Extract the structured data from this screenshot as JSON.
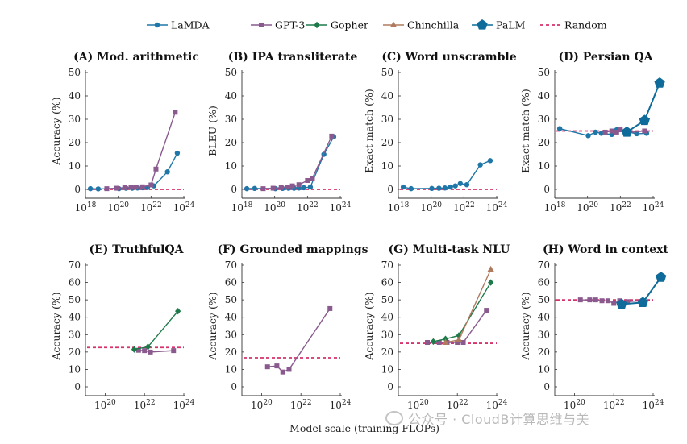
{
  "colors": {
    "LaMDA": "#1f77a8",
    "GPT-3": "#8a5a8f",
    "Gopher": "#1f7a4a",
    "Chinchilla": "#b07a5f",
    "PaLM": "#0f6b9a",
    "Random": "#d6336c"
  },
  "legend": [
    {
      "name": "LaMDA",
      "marker": "circle"
    },
    {
      "name": "GPT-3",
      "marker": "square"
    },
    {
      "name": "Gopher",
      "marker": "diamond"
    },
    {
      "name": "Chinchilla",
      "marker": "triangle"
    },
    {
      "name": "PaLM",
      "marker": "pentagon"
    },
    {
      "name": "Random",
      "marker": "dashed-line"
    }
  ],
  "figure": {
    "xlabel": "Model scale (training FLOPs)",
    "watermark": "公众号 · CloudB计算思维与美"
  },
  "chart_data": [
    {
      "id": "A",
      "title": "(A) Mod. arithmetic",
      "type": "line",
      "ylabel": "Accuracy (%)",
      "xscale": "log",
      "xlim": [
        1e+18,
        1e+24
      ],
      "ylim": [
        0,
        50
      ],
      "xticks": [
        "10^18",
        "10^20",
        "10^22",
        "10^24"
      ],
      "yticks": [
        0,
        10,
        20,
        30,
        40,
        50
      ],
      "random_baseline": 0,
      "series": [
        {
          "name": "LaMDA",
          "x": [
            2e+18,
            6e+18,
            1.1e+20,
            3e+20,
            7e+20,
            1.5e+21,
            3e+21,
            6e+21,
            1.5e+22,
            1e+23,
            4e+23
          ],
          "y": [
            0.3,
            0.2,
            0.3,
            0.5,
            0.5,
            0.6,
            0.7,
            0.8,
            1.5,
            7.5,
            15.5
          ]
        },
        {
          "name": "GPT-3",
          "x": [
            2e+19,
            8e+19,
            2.5e+20,
            6e+20,
            1.2e+21,
            3e+21,
            1e+22,
            2e+22,
            3e+23
          ],
          "y": [
            0.3,
            0.5,
            0.8,
            0.9,
            1.0,
            1.1,
            1.9,
            8.7,
            33.0
          ]
        }
      ]
    },
    {
      "id": "B",
      "title": "(B) IPA transliterate",
      "type": "line",
      "ylabel": "BLEU (%)",
      "xscale": "log",
      "xlim": [
        1e+18,
        1e+24
      ],
      "ylim": [
        0,
        50
      ],
      "xticks": [
        "10^18",
        "10^20",
        "10^22",
        "10^24"
      ],
      "yticks": [
        0,
        10,
        20,
        30,
        40,
        50
      ],
      "random_baseline": 0,
      "series": [
        {
          "name": "LaMDA",
          "x": [
            2e+18,
            6e+18,
            1.1e+20,
            3e+20,
            7e+20,
            1.5e+21,
            3e+21,
            6e+21,
            1.5e+22,
            1e+23,
            4e+23
          ],
          "y": [
            0.3,
            0.4,
            0.3,
            0.4,
            0.5,
            0.5,
            0.6,
            0.7,
            1.0,
            15.0,
            22.5
          ]
        },
        {
          "name": "GPT-3",
          "x": [
            2e+19,
            8e+19,
            2.5e+20,
            6e+20,
            1.2e+21,
            3e+21,
            1e+22,
            2e+22,
            3e+23
          ],
          "y": [
            0.3,
            0.5,
            0.8,
            1.0,
            1.5,
            2.0,
            3.8,
            4.8,
            22.8
          ]
        }
      ]
    },
    {
      "id": "C",
      "title": "(C) Word unscramble",
      "type": "line",
      "ylabel": "Exact match (%)",
      "xscale": "log",
      "xlim": [
        1e+18,
        1e+24
      ],
      "ylim": [
        0,
        50
      ],
      "xticks": [
        "10^18",
        "10^20",
        "10^22",
        "10^24"
      ],
      "yticks": [
        0,
        10,
        20,
        30,
        40,
        50
      ],
      "random_baseline": 0,
      "series": [
        {
          "name": "LaMDA",
          "x": [
            2e+18,
            6e+18,
            1.1e+20,
            3e+20,
            7e+20,
            1.5e+21,
            3e+21,
            6e+21,
            1.5e+22,
            1e+23,
            4e+23
          ],
          "y": [
            1.0,
            0.3,
            0.4,
            0.5,
            0.6,
            1.0,
            1.5,
            2.5,
            2.0,
            10.5,
            12.3
          ]
        }
      ]
    },
    {
      "id": "D",
      "title": "(D) Persian QA",
      "type": "line",
      "ylabel": "Exact match (%)",
      "xscale": "log",
      "xlim": [
        1e+18,
        1e+24
      ],
      "ylim": [
        0,
        50
      ],
      "xticks": [
        "10^18",
        "10^20",
        "10^22",
        "10^24"
      ],
      "yticks": [
        0,
        10,
        20,
        30,
        40,
        50
      ],
      "random_baseline": 25,
      "series": [
        {
          "name": "LaMDA",
          "x": [
            2e+18,
            1.1e+20,
            3e+20,
            7e+20,
            3e+21,
            6e+21,
            1e+23,
            4e+23
          ],
          "y": [
            26.0,
            23.0,
            24.5,
            24.0,
            23.5,
            25.5,
            23.8,
            24.0
          ]
        },
        {
          "name": "GPT-3",
          "x": [
            1.2e+21,
            3e+21,
            6e+21,
            1e+22,
            2e+22,
            3e+23
          ],
          "y": [
            24.5,
            25.0,
            24.5,
            25.5,
            24.2,
            25.0
          ]
        },
        {
          "name": "PaLM",
          "x": [
            2.5e+22,
            3e+23,
            2.5e+24
          ],
          "y": [
            24.5,
            29.5,
            45.5
          ]
        }
      ]
    },
    {
      "id": "E",
      "title": "(E) TruthfulQA",
      "type": "line",
      "ylabel": "Accuracy (%)",
      "xscale": "log",
      "xlim": [
        1e+19,
        1e+24
      ],
      "ylim": [
        0,
        70
      ],
      "xticks": [
        "10^20",
        "10^22",
        "10^24"
      ],
      "yticks": [
        0,
        10,
        20,
        30,
        40,
        50,
        60,
        70
      ],
      "random_baseline": 22.6,
      "series": [
        {
          "name": "GPT-3",
          "x": [
            5e+21,
            1e+22,
            2e+22,
            3e+23
          ],
          "y": [
            21.0,
            20.8,
            20.0,
            20.8
          ]
        },
        {
          "name": "Gopher",
          "x": [
            3e+21,
            1.5e+22,
            5e+23
          ],
          "y": [
            21.5,
            23.0,
            43.5
          ]
        }
      ]
    },
    {
      "id": "F",
      "title": "(F) Grounded mappings",
      "type": "line",
      "ylabel": "Accuracy (%)",
      "xscale": "log",
      "xlim": [
        1e+19,
        1e+24
      ],
      "ylim": [
        0,
        70
      ],
      "xticks": [
        "10^20",
        "10^22",
        "10^24"
      ],
      "yticks": [
        0,
        10,
        20,
        30,
        40,
        50,
        60,
        70
      ],
      "random_baseline": 16.7,
      "series": [
        {
          "name": "GPT-3",
          "x": [
            2e+20,
            6e+20,
            1.2e+21,
            2.5e+21,
            3e+23
          ],
          "y": [
            11.5,
            12.0,
            8.5,
            10.0,
            45.0
          ]
        }
      ]
    },
    {
      "id": "G",
      "title": "(G) Multi-task NLU",
      "type": "line",
      "ylabel": "Accuracy (%)",
      "xscale": "log",
      "xlim": [
        1e+19,
        1e+24
      ],
      "ylim": [
        0,
        70
      ],
      "xticks": [
        "10^20",
        "10^22",
        "10^24"
      ],
      "yticks": [
        0,
        10,
        20,
        30,
        40,
        50,
        60,
        70
      ],
      "random_baseline": 25,
      "series": [
        {
          "name": "GPT-3",
          "x": [
            3e+20,
            1.2e+21,
            3e+21,
            1e+22,
            2e+22,
            3e+23
          ],
          "y": [
            25.5,
            25.5,
            25.5,
            25.5,
            25.5,
            44.0
          ]
        },
        {
          "name": "Gopher",
          "x": [
            6e+20,
            2.5e+21,
            1.2e+22,
            5e+23
          ],
          "y": [
            26.0,
            27.5,
            29.5,
            60.0
          ]
        },
        {
          "name": "Chinchilla",
          "x": [
            2.5e+21,
            1.2e+22,
            5e+23
          ],
          "y": [
            25.5,
            27.0,
            67.5
          ]
        }
      ]
    },
    {
      "id": "H",
      "title": "(H) Word in context",
      "type": "line",
      "ylabel": "Accuracy (%)",
      "xscale": "log",
      "xlim": [
        1e+19,
        1e+24
      ],
      "ylim": [
        0,
        70
      ],
      "xticks": [
        "10^20",
        "10^22",
        "10^24"
      ],
      "yticks": [
        0,
        10,
        20,
        30,
        40,
        50,
        60,
        70
      ],
      "random_baseline": 50,
      "series": [
        {
          "name": "GPT-3",
          "x": [
            2e+20,
            6e+20,
            1.2e+21,
            2.5e+21,
            5e+21,
            1e+22,
            2e+22,
            5e+22,
            3e+23
          ],
          "y": [
            50.0,
            50.0,
            50.0,
            49.5,
            49.5,
            48.0,
            49.5,
            49.0,
            49.5
          ]
        },
        {
          "name": "PaLM",
          "x": [
            2.5e+22,
            3e+23,
            2.5e+24
          ],
          "y": [
            47.5,
            48.5,
            63.0
          ]
        }
      ]
    }
  ]
}
